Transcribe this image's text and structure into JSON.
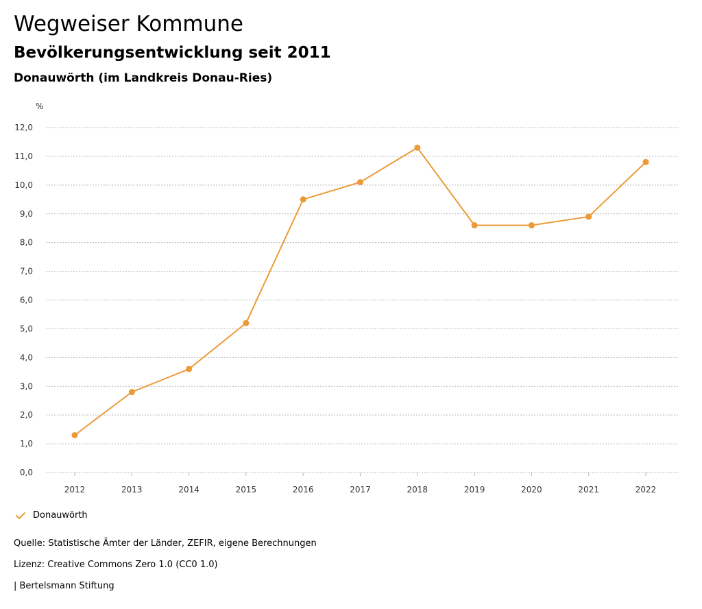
{
  "header": {
    "title": "Wegweiser Kommune",
    "subtitle": "Bevölkerungsentwicklung seit 2011",
    "region": "Donauwörth (im Landkreis Donau-Ries)"
  },
  "chart_data": {
    "type": "line",
    "title": "Bevölkerungsentwicklung seit 2011",
    "ylabel": "%",
    "xlabel": "",
    "categories": [
      "2012",
      "2013",
      "2014",
      "2015",
      "2016",
      "2017",
      "2018",
      "2019",
      "2020",
      "2021",
      "2022"
    ],
    "series": [
      {
        "name": "Donauwörth",
        "color": "#ec9a36",
        "values": [
          1.3,
          2.8,
          3.6,
          5.2,
          9.5,
          10.1,
          11.3,
          8.6,
          8.6,
          8.9,
          10.8
        ]
      }
    ],
    "ylim": [
      0,
      12
    ],
    "yticks": [
      0,
      1,
      2,
      3,
      4,
      5,
      6,
      7,
      8,
      9,
      10,
      11,
      12
    ],
    "ytick_labels": [
      "0,0",
      "1,0",
      "2,0",
      "3,0",
      "4,0",
      "5,0",
      "6,0",
      "7,0",
      "8,0",
      "9,0",
      "10,0",
      "11,0",
      "12,0"
    ],
    "grid": true,
    "legend": "bottom-left"
  },
  "legend": {
    "label": "Donauwörth",
    "icon": "check-icon"
  },
  "footer": {
    "source": "Quelle: Statistische Ämter der Länder, ZEFIR, eigene Berechnungen",
    "license": "Lizenz: Creative Commons Zero 1.0 (CC0 1.0)",
    "brand": "| Bertelsmann Stiftung"
  }
}
